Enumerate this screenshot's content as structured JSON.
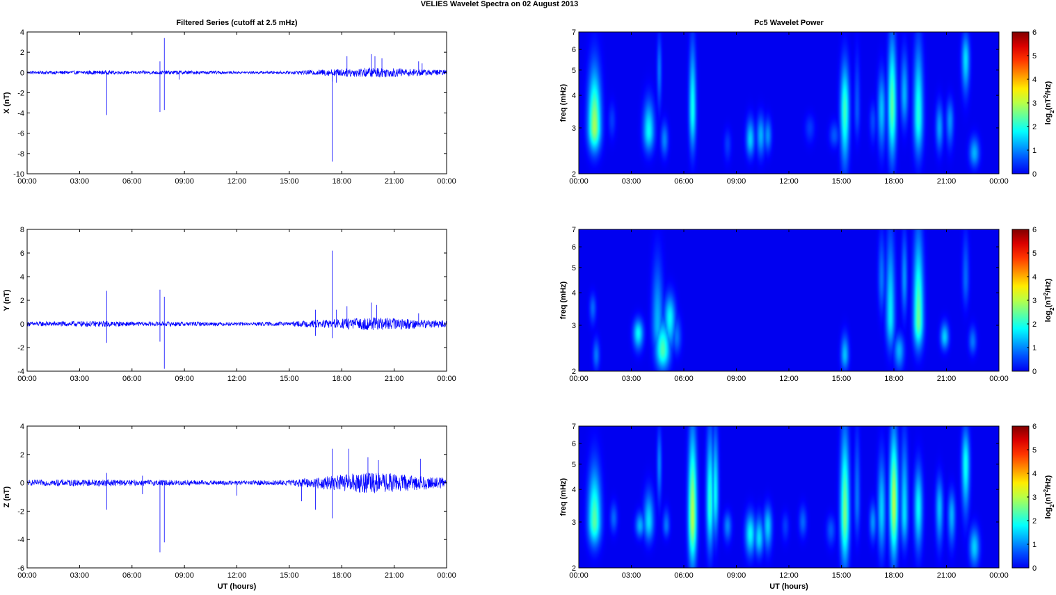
{
  "figure": {
    "suptitle": "VELIES Wavelet Spectra on 02 August    2013"
  },
  "chart_data": [
    {
      "type": "line",
      "panel": "filtered-x",
      "title": "Filtered Series (cutoff at 2.5 mHz)",
      "xlabel": "",
      "ylabel": "X (nT)",
      "xlim": [
        0,
        24
      ],
      "ylim": [
        -10,
        4
      ],
      "yticks": [
        4,
        2,
        0,
        -2,
        -4,
        -6,
        -8,
        -10
      ],
      "xticklabels": [
        "00:00",
        "03:00",
        "06:00",
        "09:00",
        "12:00",
        "15:00",
        "18:00",
        "21:00",
        "00:00"
      ],
      "line_color": "#0000ff",
      "noise_envelope": [
        [
          0,
          0.15
        ],
        [
          4.5,
          0.2
        ],
        [
          6,
          0.15
        ],
        [
          8.5,
          0.2
        ],
        [
          12,
          0.12
        ],
        [
          15,
          0.15
        ],
        [
          17.5,
          0.35
        ],
        [
          19,
          0.45
        ],
        [
          20,
          0.5
        ],
        [
          21.5,
          0.4
        ],
        [
          23,
          0.3
        ],
        [
          24,
          0.25
        ]
      ],
      "spikes": [
        {
          "t": 4.55,
          "v": -4.2
        },
        {
          "t": 7.6,
          "v": -3.9
        },
        {
          "t": 7.6,
          "v": 1.1
        },
        {
          "t": 7.85,
          "v": 3.4
        },
        {
          "t": 7.85,
          "v": -3.7
        },
        {
          "t": 8.7,
          "v": -0.7
        },
        {
          "t": 17.45,
          "v": -8.8
        },
        {
          "t": 17.45,
          "v": -0.9
        },
        {
          "t": 17.7,
          "v": -1.0
        },
        {
          "t": 18.3,
          "v": 1.6
        },
        {
          "t": 19.7,
          "v": 1.8
        },
        {
          "t": 19.9,
          "v": 1.6
        },
        {
          "t": 20.3,
          "v": 1.4
        },
        {
          "t": 22.4,
          "v": 1.1
        },
        {
          "t": 22.6,
          "v": 0.9
        }
      ]
    },
    {
      "type": "line",
      "panel": "filtered-y",
      "title": "",
      "xlabel": "",
      "ylabel": "Y (nT)",
      "xlim": [
        0,
        24
      ],
      "ylim": [
        -4,
        8
      ],
      "yticks": [
        8,
        6,
        4,
        2,
        0,
        -2,
        -4
      ],
      "xticklabels": [
        "00:00",
        "03:00",
        "06:00",
        "09:00",
        "12:00",
        "15:00",
        "18:00",
        "21:00",
        "00:00"
      ],
      "line_color": "#0000ff",
      "noise_envelope": [
        [
          0,
          0.2
        ],
        [
          4.5,
          0.25
        ],
        [
          6,
          0.18
        ],
        [
          8.5,
          0.2
        ],
        [
          12,
          0.15
        ],
        [
          15,
          0.18
        ],
        [
          17.5,
          0.4
        ],
        [
          19,
          0.5
        ],
        [
          20,
          0.55
        ],
        [
          21.5,
          0.45
        ],
        [
          23,
          0.35
        ],
        [
          24,
          0.3
        ]
      ],
      "spikes": [
        {
          "t": 4.55,
          "v": 2.8
        },
        {
          "t": 4.55,
          "v": -1.6
        },
        {
          "t": 7.6,
          "v": 2.9
        },
        {
          "t": 7.6,
          "v": -1.5
        },
        {
          "t": 7.85,
          "v": 2.3
        },
        {
          "t": 7.85,
          "v": -3.8
        },
        {
          "t": 16.5,
          "v": 1.2
        },
        {
          "t": 16.5,
          "v": -1.0
        },
        {
          "t": 17.45,
          "v": 6.2
        },
        {
          "t": 17.45,
          "v": -1.2
        },
        {
          "t": 17.7,
          "v": 1.2
        },
        {
          "t": 18.3,
          "v": 1.5
        },
        {
          "t": 19.7,
          "v": 1.8
        },
        {
          "t": 20.0,
          "v": 1.6
        },
        {
          "t": 22.4,
          "v": 0.9
        }
      ]
    },
    {
      "type": "line",
      "panel": "filtered-z",
      "title": "",
      "xlabel": "UT (hours)",
      "ylabel": "Z (nT)",
      "xlim": [
        0,
        24
      ],
      "ylim": [
        -6,
        4
      ],
      "yticks": [
        4,
        2,
        0,
        -2,
        -4,
        -6
      ],
      "xticklabels": [
        "00:00",
        "03:00",
        "06:00",
        "09:00",
        "12:00",
        "15:00",
        "18:00",
        "21:00",
        "00:00"
      ],
      "line_color": "#0000ff",
      "noise_envelope": [
        [
          0,
          0.2
        ],
        [
          4.5,
          0.25
        ],
        [
          6,
          0.2
        ],
        [
          8.5,
          0.2
        ],
        [
          12,
          0.15
        ],
        [
          15,
          0.2
        ],
        [
          17.5,
          0.5
        ],
        [
          19,
          0.7
        ],
        [
          20,
          0.75
        ],
        [
          21.5,
          0.6
        ],
        [
          23,
          0.45
        ],
        [
          24,
          0.35
        ]
      ],
      "spikes": [
        {
          "t": 4.55,
          "v": -1.9
        },
        {
          "t": 4.55,
          "v": 0.7
        },
        {
          "t": 6.6,
          "v": -0.8
        },
        {
          "t": 6.6,
          "v": 0.5
        },
        {
          "t": 7.6,
          "v": -4.9
        },
        {
          "t": 7.85,
          "v": -4.2
        },
        {
          "t": 12.0,
          "v": -0.9
        },
        {
          "t": 15.7,
          "v": -1.3
        },
        {
          "t": 16.5,
          "v": -1.9
        },
        {
          "t": 17.45,
          "v": 2.4
        },
        {
          "t": 17.45,
          "v": -2.5
        },
        {
          "t": 18.4,
          "v": 2.4
        },
        {
          "t": 19.5,
          "v": 1.8
        },
        {
          "t": 20.1,
          "v": 1.6
        },
        {
          "t": 22.5,
          "v": 1.7
        }
      ]
    },
    {
      "type": "heatmap",
      "panel": "wavelet-x",
      "title": "Pc5 Wavelet Power",
      "xlabel": "",
      "ylabel": "freq (mHz)",
      "xlim": [
        0,
        24
      ],
      "ylim": [
        2,
        7
      ],
      "yscale": "log",
      "yticks": [
        7,
        6,
        5,
        4,
        3,
        2
      ],
      "xticklabels": [
        "00:00",
        "03:00",
        "06:00",
        "09:00",
        "12:00",
        "15:00",
        "18:00",
        "21:00",
        "00:00"
      ],
      "colorbar": {
        "label": "log2(nT²/Hz)",
        "range": [
          0,
          6
        ],
        "ticks": [
          6,
          5,
          4,
          3,
          2,
          1,
          0
        ],
        "colormap": "jet"
      },
      "blobs": [
        {
          "t": 0.9,
          "f": 3.0,
          "p": 2.9,
          "tw": 0.25,
          "f1": 2.4,
          "f2": 5.2
        },
        {
          "t": 1.9,
          "f": 3.2,
          "p": 0.5,
          "tw": 0.15,
          "f1": 2.7,
          "f2": 3.8
        },
        {
          "t": 4.0,
          "f": 2.9,
          "p": 1.8,
          "tw": 0.22,
          "f1": 2.4,
          "f2": 3.9
        },
        {
          "t": 4.6,
          "f": 5.0,
          "p": 0.9,
          "tw": 0.1,
          "f1": 3.5,
          "f2": 7.0
        },
        {
          "t": 4.9,
          "f": 2.7,
          "p": 1.0,
          "tw": 0.15,
          "f1": 2.3,
          "f2": 3.2
        },
        {
          "t": 6.5,
          "f": 3.5,
          "p": 1.9,
          "tw": 0.14,
          "f1": 2.4,
          "f2": 6.5
        },
        {
          "t": 8.5,
          "f": 2.6,
          "p": 0.5,
          "tw": 0.15,
          "f1": 2.2,
          "f2": 3.0
        },
        {
          "t": 9.8,
          "f": 2.7,
          "p": 1.5,
          "tw": 0.17,
          "f1": 2.3,
          "f2": 3.3
        },
        {
          "t": 10.4,
          "f": 2.8,
          "p": 1.3,
          "tw": 0.17,
          "f1": 2.3,
          "f2": 3.4
        },
        {
          "t": 10.8,
          "f": 2.8,
          "p": 1.1,
          "tw": 0.15,
          "f1": 2.4,
          "f2": 3.3
        },
        {
          "t": 13.2,
          "f": 3.0,
          "p": 0.5,
          "tw": 0.2,
          "f1": 2.6,
          "f2": 3.4
        },
        {
          "t": 14.6,
          "f": 2.8,
          "p": 0.7,
          "tw": 0.2,
          "f1": 2.5,
          "f2": 3.2
        },
        {
          "t": 15.2,
          "f": 3.5,
          "p": 2.2,
          "tw": 0.18,
          "f1": 2.1,
          "f2": 5.5
        },
        {
          "t": 15.9,
          "f": 3.5,
          "p": 0.7,
          "tw": 0.12,
          "f1": 2.7,
          "f2": 6.0
        },
        {
          "t": 16.8,
          "f": 3.2,
          "p": 0.6,
          "tw": 0.14,
          "f1": 2.6,
          "f2": 3.8
        },
        {
          "t": 17.3,
          "f": 3.5,
          "p": 1.4,
          "tw": 0.16,
          "f1": 2.4,
          "f2": 5.0
        },
        {
          "t": 17.9,
          "f": 3.6,
          "p": 2.4,
          "tw": 0.17,
          "f1": 2.2,
          "f2": 7.0
        },
        {
          "t": 18.6,
          "f": 4.0,
          "p": 1.3,
          "tw": 0.15,
          "f1": 3.0,
          "f2": 6.0
        },
        {
          "t": 19.4,
          "f": 3.3,
          "p": 2.0,
          "tw": 0.19,
          "f1": 2.3,
          "f2": 6.5
        },
        {
          "t": 20.6,
          "f": 3.0,
          "p": 1.2,
          "tw": 0.15,
          "f1": 2.4,
          "f2": 3.8
        },
        {
          "t": 21.2,
          "f": 3.2,
          "p": 1.1,
          "tw": 0.15,
          "f1": 2.5,
          "f2": 3.9
        },
        {
          "t": 22.1,
          "f": 5.5,
          "p": 1.6,
          "tw": 0.16,
          "f1": 4.0,
          "f2": 7.0
        },
        {
          "t": 22.6,
          "f": 2.4,
          "p": 1.3,
          "tw": 0.2,
          "f1": 2.1,
          "f2": 2.8
        }
      ]
    },
    {
      "type": "heatmap",
      "panel": "wavelet-y",
      "title": "",
      "xlabel": "",
      "ylabel": "freq (mHz)",
      "xlim": [
        0,
        24
      ],
      "ylim": [
        2,
        7
      ],
      "yscale": "log",
      "yticks": [
        7,
        6,
        5,
        4,
        3,
        2
      ],
      "xticklabels": [
        "00:00",
        "03:00",
        "06:00",
        "09:00",
        "12:00",
        "15:00",
        "18:00",
        "21:00",
        "00:00"
      ],
      "colorbar": {
        "label": "log2(nT²/Hz)",
        "range": [
          0,
          6
        ],
        "ticks": [
          6,
          5,
          4,
          3,
          2,
          1,
          0
        ],
        "colormap": "jet"
      },
      "blobs": [
        {
          "t": 0.8,
          "f": 3.5,
          "p": 0.8,
          "tw": 0.14,
          "f1": 3.0,
          "f2": 4.0
        },
        {
          "t": 1.0,
          "f": 2.3,
          "p": 0.9,
          "tw": 0.14,
          "f1": 2.0,
          "f2": 2.7
        },
        {
          "t": 3.4,
          "f": 2.8,
          "p": 1.8,
          "tw": 0.2,
          "f1": 2.4,
          "f2": 3.2
        },
        {
          "t": 4.5,
          "f": 3.0,
          "p": 1.3,
          "tw": 0.22,
          "f1": 2.3,
          "f2": 5.5
        },
        {
          "t": 4.8,
          "f": 2.4,
          "p": 2.3,
          "tw": 0.28,
          "f1": 2.0,
          "f2": 3.2
        },
        {
          "t": 5.2,
          "f": 3.2,
          "p": 1.8,
          "tw": 0.22,
          "f1": 2.4,
          "f2": 4.0
        },
        {
          "t": 5.6,
          "f": 2.7,
          "p": 0.9,
          "tw": 0.18,
          "f1": 2.3,
          "f2": 3.3
        },
        {
          "t": 15.2,
          "f": 2.3,
          "p": 1.4,
          "tw": 0.16,
          "f1": 2.0,
          "f2": 2.8
        },
        {
          "t": 17.3,
          "f": 4.5,
          "p": 0.9,
          "tw": 0.14,
          "f1": 3.3,
          "f2": 7.0
        },
        {
          "t": 17.8,
          "f": 3.2,
          "p": 1.7,
          "tw": 0.18,
          "f1": 2.4,
          "f2": 7.0
        },
        {
          "t": 18.3,
          "f": 2.4,
          "p": 1.3,
          "tw": 0.2,
          "f1": 2.0,
          "f2": 2.8
        },
        {
          "t": 18.6,
          "f": 4.5,
          "p": 1.1,
          "tw": 0.12,
          "f1": 3.2,
          "f2": 7.0
        },
        {
          "t": 19.4,
          "f": 3.1,
          "p": 2.5,
          "tw": 0.2,
          "f1": 2.4,
          "f2": 7.0
        },
        {
          "t": 20.9,
          "f": 2.7,
          "p": 1.5,
          "tw": 0.17,
          "f1": 2.4,
          "f2": 3.1
        },
        {
          "t": 22.1,
          "f": 4.5,
          "p": 0.8,
          "tw": 0.14,
          "f1": 3.5,
          "f2": 7.0
        },
        {
          "t": 22.5,
          "f": 2.6,
          "p": 0.9,
          "tw": 0.16,
          "f1": 2.3,
          "f2": 3.0
        }
      ]
    },
    {
      "type": "heatmap",
      "panel": "wavelet-z",
      "title": "",
      "xlabel": "UT (hours)",
      "ylabel": "freq (mHz)",
      "xlim": [
        0,
        24
      ],
      "ylim": [
        2,
        7
      ],
      "yscale": "log",
      "yticks": [
        7,
        6,
        5,
        4,
        3,
        2
      ],
      "xticklabels": [
        "00:00",
        "03:00",
        "06:00",
        "09:00",
        "12:00",
        "15:00",
        "18:00",
        "21:00",
        "00:00"
      ],
      "colorbar": {
        "label": "log2(nT²/Hz)",
        "range": [
          0,
          6
        ],
        "ticks": [
          6,
          5,
          4,
          3,
          2,
          1,
          0
        ],
        "colormap": "jet"
      },
      "blobs": [
        {
          "t": 0.9,
          "f": 3.0,
          "p": 2.4,
          "tw": 0.25,
          "f1": 2.4,
          "f2": 5.0
        },
        {
          "t": 2.0,
          "f": 3.1,
          "p": 0.8,
          "tw": 0.15,
          "f1": 2.7,
          "f2": 3.6
        },
        {
          "t": 3.5,
          "f": 2.9,
          "p": 1.3,
          "tw": 0.18,
          "f1": 2.6,
          "f2": 3.3
        },
        {
          "t": 4.0,
          "f": 3.0,
          "p": 1.6,
          "tw": 0.2,
          "f1": 2.5,
          "f2": 4.0
        },
        {
          "t": 4.6,
          "f": 5.0,
          "p": 1.0,
          "tw": 0.1,
          "f1": 3.5,
          "f2": 7.0
        },
        {
          "t": 5.0,
          "f": 2.9,
          "p": 0.9,
          "tw": 0.14,
          "f1": 2.6,
          "f2": 3.4
        },
        {
          "t": 6.5,
          "f": 3.1,
          "p": 3.0,
          "tw": 0.17,
          "f1": 2.0,
          "f2": 7.0
        },
        {
          "t": 7.5,
          "f": 3.5,
          "p": 2.1,
          "tw": 0.15,
          "f1": 2.3,
          "f2": 7.0
        },
        {
          "t": 7.8,
          "f": 3.8,
          "p": 1.8,
          "tw": 0.13,
          "f1": 2.6,
          "f2": 7.0
        },
        {
          "t": 8.5,
          "f": 2.9,
          "p": 1.0,
          "tw": 0.16,
          "f1": 2.5,
          "f2": 3.3
        },
        {
          "t": 9.8,
          "f": 2.7,
          "p": 1.8,
          "tw": 0.2,
          "f1": 2.2,
          "f2": 3.3
        },
        {
          "t": 10.3,
          "f": 2.6,
          "p": 1.6,
          "tw": 0.18,
          "f1": 2.2,
          "f2": 3.2
        },
        {
          "t": 10.8,
          "f": 2.9,
          "p": 1.5,
          "tw": 0.17,
          "f1": 2.3,
          "f2": 3.5
        },
        {
          "t": 11.8,
          "f": 2.9,
          "p": 0.5,
          "tw": 0.15,
          "f1": 2.5,
          "f2": 3.3
        },
        {
          "t": 12.8,
          "f": 3.0,
          "p": 0.8,
          "tw": 0.16,
          "f1": 2.6,
          "f2": 3.5
        },
        {
          "t": 14.4,
          "f": 2.8,
          "p": 0.7,
          "tw": 0.18,
          "f1": 2.4,
          "f2": 3.2
        },
        {
          "t": 15.2,
          "f": 3.2,
          "p": 2.6,
          "tw": 0.18,
          "f1": 2.0,
          "f2": 7.0
        },
        {
          "t": 15.9,
          "f": 3.6,
          "p": 0.9,
          "tw": 0.12,
          "f1": 2.6,
          "f2": 7.0
        },
        {
          "t": 16.8,
          "f": 3.0,
          "p": 1.1,
          "tw": 0.14,
          "f1": 2.5,
          "f2": 3.6
        },
        {
          "t": 17.3,
          "f": 3.3,
          "p": 1.5,
          "tw": 0.16,
          "f1": 2.2,
          "f2": 5.5
        },
        {
          "t": 18.0,
          "f": 3.5,
          "p": 3.0,
          "tw": 0.17,
          "f1": 2.1,
          "f2": 7.0
        },
        {
          "t": 18.6,
          "f": 3.2,
          "p": 1.6,
          "tw": 0.15,
          "f1": 2.4,
          "f2": 6.5
        },
        {
          "t": 19.4,
          "f": 3.4,
          "p": 1.8,
          "tw": 0.17,
          "f1": 2.3,
          "f2": 5.0
        },
        {
          "t": 20.6,
          "f": 3.4,
          "p": 1.4,
          "tw": 0.15,
          "f1": 2.4,
          "f2": 4.5
        },
        {
          "t": 21.3,
          "f": 3.2,
          "p": 1.3,
          "tw": 0.15,
          "f1": 2.4,
          "f2": 4.0
        },
        {
          "t": 22.1,
          "f": 5.0,
          "p": 1.9,
          "tw": 0.16,
          "f1": 3.2,
          "f2": 7.0
        },
        {
          "t": 22.6,
          "f": 2.4,
          "p": 1.5,
          "tw": 0.2,
          "f1": 2.0,
          "f2": 2.9
        }
      ]
    }
  ]
}
